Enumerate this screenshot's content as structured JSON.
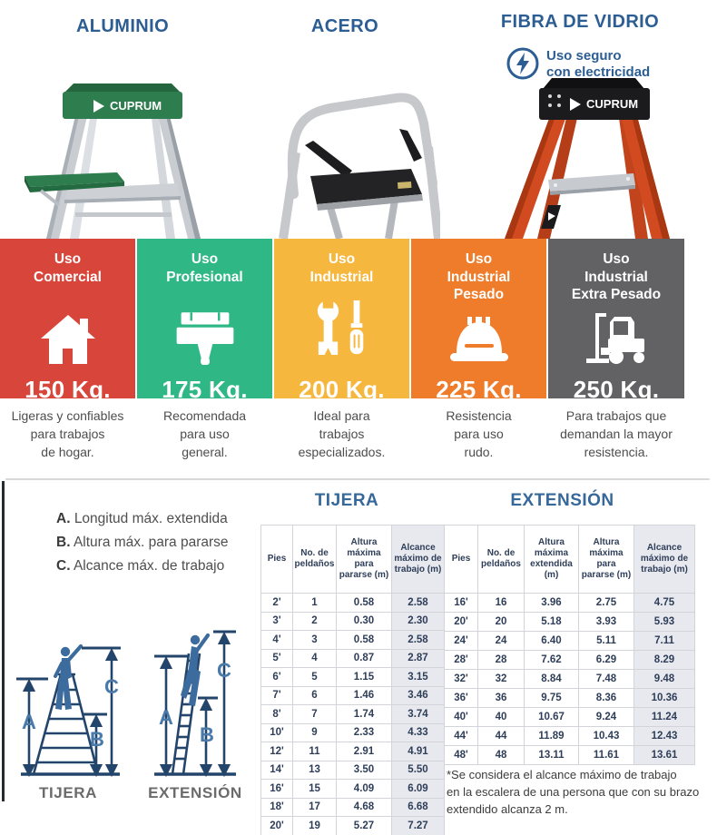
{
  "products": [
    {
      "title": "ALUMINIO"
    },
    {
      "title": "ACERO"
    },
    {
      "title": "FIBRA DE VIDRIO",
      "safety_badge": "Uso seguro\ncon electricidad"
    }
  ],
  "usage_categories": [
    {
      "title": "Uso\nComercial",
      "icon": "house-icon",
      "capacity": "150 Kg.",
      "color": "#d8463b",
      "description": "Ligeras y confiables\npara trabajos\nde hogar."
    },
    {
      "title": "Uso\nProfesional",
      "icon": "paintbrush-icon",
      "capacity": "175 Kg.",
      "color": "#2fb886",
      "description": "Recomendada\npara uso\ngeneral."
    },
    {
      "title": "Uso\nIndustrial",
      "icon": "tools-icon",
      "capacity": "200 Kg.",
      "color": "#f6b73e",
      "description": "Ideal para\ntrabajos\nespecializados."
    },
    {
      "title": "Uso\nIndustrial\nPesado",
      "icon": "hardhat-icon",
      "capacity": "225 Kg.",
      "color": "#ee7c2b",
      "description": "Resistencia\npara uso\nrudo."
    },
    {
      "title": "Uso\nIndustrial\nExtra Pesado",
      "icon": "forklift-icon",
      "capacity": "250 Kg.",
      "color": "#626264",
      "description": "Para trabajos que\ndemandan la mayor\nresistencia."
    }
  ],
  "legend": {
    "items": [
      {
        "key": "A.",
        "text": "Longitud máx. extendida"
      },
      {
        "key": "B.",
        "text": "Altura máx. para pararse"
      },
      {
        "key": "C.",
        "text": "Alcance máx. de trabajo"
      }
    ]
  },
  "sections": {
    "tijera_title": "TIJERA",
    "extension_title": "EXTENSIÓN"
  },
  "tables": {
    "tijera": {
      "columns": [
        "Pies",
        "No. de peldaños",
        "Altura máxima para pararse (m)",
        "Alcance máximo de trabajo (m)"
      ],
      "highlight_col": 3,
      "rows": [
        [
          "2'",
          "1",
          "0.58",
          "2.58"
        ],
        [
          "3'",
          "2",
          "0.30",
          "2.30"
        ],
        [
          "4'",
          "3",
          "0.58",
          "2.58"
        ],
        [
          "5'",
          "4",
          "0.87",
          "2.87"
        ],
        [
          "6'",
          "5",
          "1.15",
          "3.15"
        ],
        [
          "7'",
          "6",
          "1.46",
          "3.46"
        ],
        [
          "8'",
          "7",
          "1.74",
          "3.74"
        ],
        [
          "10'",
          "9",
          "2.33",
          "4.33"
        ],
        [
          "12'",
          "11",
          "2.91",
          "4.91"
        ],
        [
          "14'",
          "13",
          "3.50",
          "5.50"
        ],
        [
          "16'",
          "15",
          "4.09",
          "6.09"
        ],
        [
          "18'",
          "17",
          "4.68",
          "6.68"
        ],
        [
          "20'",
          "19",
          "5.27",
          "7.27"
        ]
      ]
    },
    "extension": {
      "columns": [
        "Pies",
        "No. de peldaños",
        "Altura máxima extendida (m)",
        "Altura máxima para pararse (m)",
        "Alcance máximo de trabajo (m)"
      ],
      "highlight_col": 4,
      "rows": [
        [
          "16'",
          "16",
          "3.96",
          "2.75",
          "4.75"
        ],
        [
          "20'",
          "20",
          "5.18",
          "3.93",
          "5.93"
        ],
        [
          "24'",
          "24",
          "6.40",
          "5.11",
          "7.11"
        ],
        [
          "28'",
          "28",
          "7.62",
          "6.29",
          "8.29"
        ],
        [
          "32'",
          "32",
          "8.84",
          "7.48",
          "9.48"
        ],
        [
          "36'",
          "36",
          "9.75",
          "8.36",
          "10.36"
        ],
        [
          "40'",
          "40",
          "10.67",
          "9.24",
          "11.24"
        ],
        [
          "44'",
          "44",
          "11.89",
          "10.43",
          "12.43"
        ],
        [
          "48'",
          "48",
          "13.11",
          "11.61",
          "13.61"
        ]
      ]
    }
  },
  "footnote": "*Se considera el alcance máximo de trabajo\nen la escalera de una persona que con su brazo\nextendido alcanza 2 m.",
  "diagrams": {
    "tijera_caption": "TIJERA",
    "extension_caption": "EXTENSIÓN",
    "labels": {
      "a": "A",
      "b": "B",
      "c": "C"
    }
  },
  "colors": {
    "title_blue": "#2c5d93",
    "table_text": "#2f3e58",
    "diagram_navy": "#24456b",
    "diagram_label_blue": "#4a7aa9",
    "highlight_cell": "#e7e9ef"
  }
}
